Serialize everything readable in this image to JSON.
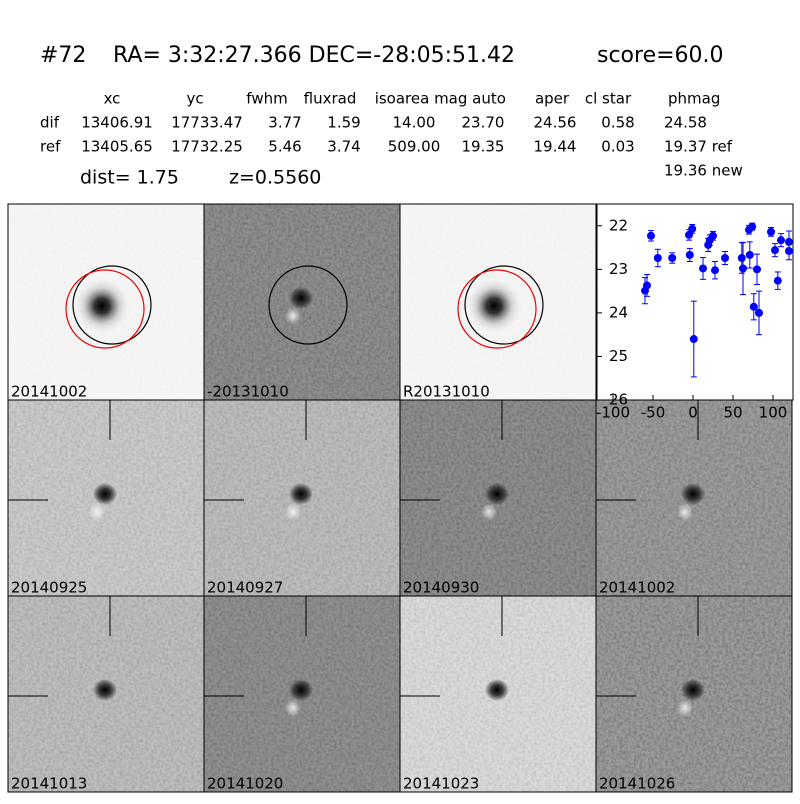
{
  "header": {
    "id": "#72",
    "coords": "RA= 3:32:27.366 DEC=-28:05:51.42",
    "score": "score=60.0"
  },
  "table": {
    "columns": [
      "xc",
      "yc",
      "fwhm",
      "fluxrad",
      "isoarea",
      "mag auto",
      "aper",
      "cl star",
      "phmag"
    ],
    "rows": [
      [
        "dif",
        "13406.91",
        "17733.47",
        "3.77",
        "1.59",
        "14.00",
        "23.70",
        "24.56",
        "0.58",
        "24.58"
      ],
      [
        "ref",
        "13405.65",
        "17732.25",
        "5.46",
        "3.74",
        "509.00",
        "19.35",
        "19.44",
        "0.03",
        "19.37 ref"
      ]
    ],
    "extra": "19.36 new"
  },
  "dist": "dist=  1.75",
  "redshift": "z=0.5560",
  "stamps": [
    {
      "label": "20141002",
      "color": "#000000"
    },
    {
      "label": "-20131010",
      "color": "#000000"
    },
    {
      "label": "R20131010",
      "color": "#000000"
    },
    {
      "label": "20140925",
      "color": "#000000"
    },
    {
      "label": "20140927",
      "color": "#000000"
    },
    {
      "label": "20140930",
      "color": "#000000"
    },
    {
      "label": "20141002",
      "color": "#ff0000"
    },
    {
      "label": "20141013",
      "color": "#000000"
    },
    {
      "label": "20141020",
      "color": "#000000"
    },
    {
      "label": "20141023",
      "color": "#000000"
    },
    {
      "label": "20141026",
      "color": "#000000"
    }
  ],
  "chart_data": {
    "type": "scatter",
    "color": "#0000ff",
    "xlim": [
      -120,
      125
    ],
    "ylim": [
      26,
      21.5
    ],
    "xticks": [
      -100,
      -50,
      0,
      50,
      100
    ],
    "yticks": [
      22,
      23,
      24,
      25,
      26
    ],
    "x": [
      -60,
      -57.5,
      -52.5,
      -44,
      -26,
      -5,
      -1,
      -4,
      1,
      12.5,
      19,
      21,
      25,
      27.5,
      40,
      61,
      62.5,
      70,
      74,
      71,
      76,
      80,
      82.5,
      97.5,
      102.5,
      106,
      110,
      120,
      120
    ],
    "values": [
      23.49,
      23.37,
      22.23,
      22.74,
      22.74,
      22.21,
      22.07,
      22.67,
      24.6,
      22.98,
      22.44,
      22.33,
      22.23,
      23.02,
      22.74,
      22.74,
      22.98,
      22.09,
      22.02,
      22.67,
      23.86,
      23.0,
      24.0,
      22.14,
      22.56,
      23.26,
      22.33,
      22.37,
      22.58
    ],
    "errors": [
      0.3,
      0.25,
      0.12,
      0.2,
      0.12,
      0.12,
      0.1,
      0.15,
      0.87,
      0.25,
      0.15,
      0.12,
      0.1,
      0.2,
      0.15,
      0.35,
      0.6,
      0.1,
      0.08,
      0.3,
      0.3,
      0.35,
      0.5,
      0.1,
      0.15,
      0.2,
      0.15,
      0.25,
      0.2
    ]
  }
}
